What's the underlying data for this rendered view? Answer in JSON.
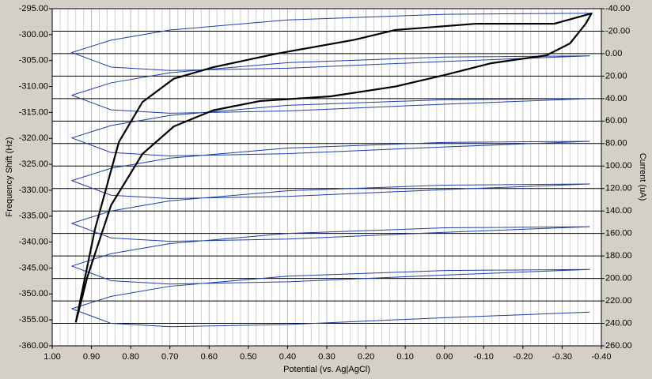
{
  "chart_data": {
    "type": "line",
    "xlabel": "Potential (vs. Ag|AgCl)",
    "ylabel": "Frequency Shift (Hz)",
    "y2label": "Current (uA)",
    "xlim": [
      1,
      -0.4
    ],
    "ylim": [
      -360,
      -295
    ],
    "y2lim": [
      260,
      -40
    ],
    "grid_x_subdivisions": 5,
    "xticks": [
      {
        "value": 1,
        "label": "1.00"
      },
      {
        "value": 0.9,
        "label": "0.90"
      },
      {
        "value": 0.8,
        "label": "0.80"
      },
      {
        "value": 0.7,
        "label": "0.70"
      },
      {
        "value": 0.6,
        "label": "0.60"
      },
      {
        "value": 0.5,
        "label": "0.50"
      },
      {
        "value": 0.4,
        "label": "0.40"
      },
      {
        "value": 0.3,
        "label": "0.30"
      },
      {
        "value": 0.2,
        "label": "0.20"
      },
      {
        "value": 0.1,
        "label": "0.10"
      },
      {
        "value": 0,
        "label": "0.00"
      },
      {
        "value": -0.1,
        "label": "-0.10"
      },
      {
        "value": -0.2,
        "label": "-0.20"
      },
      {
        "value": -0.3,
        "label": "-0.30"
      },
      {
        "value": -0.4,
        "label": "-0.40"
      }
    ],
    "yticks": [
      {
        "value": -295,
        "label": "-295.00"
      },
      {
        "value": -300,
        "label": "-300.00"
      },
      {
        "value": -305,
        "label": "-305.00"
      },
      {
        "value": -310,
        "label": "-310.00"
      },
      {
        "value": -315,
        "label": "-315.00"
      },
      {
        "value": -320,
        "label": "-320.00"
      },
      {
        "value": -325,
        "label": "-325.00"
      },
      {
        "value": -330,
        "label": "-330.00"
      },
      {
        "value": -335,
        "label": "-335.00"
      },
      {
        "value": -340,
        "label": "-340.00"
      },
      {
        "value": -345,
        "label": "-345.00"
      },
      {
        "value": -350,
        "label": "-350.00"
      },
      {
        "value": -355,
        "label": "-355.00"
      },
      {
        "value": -360,
        "label": "-360.00"
      }
    ],
    "y2ticks": [
      {
        "value": -40,
        "label": "-40.00"
      },
      {
        "value": -20,
        "label": "-20.00"
      },
      {
        "value": 0,
        "label": "0.00"
      },
      {
        "value": 20,
        "label": "20.00"
      },
      {
        "value": 40,
        "label": "40.00"
      },
      {
        "value": 60,
        "label": "60.00"
      },
      {
        "value": 80,
        "label": "80.00"
      },
      {
        "value": 100,
        "label": "100.00"
      },
      {
        "value": 120,
        "label": "120.00"
      },
      {
        "value": 140,
        "label": "140.00"
      },
      {
        "value": 160,
        "label": "160.00"
      },
      {
        "value": 180,
        "label": "180.00"
      },
      {
        "value": 200,
        "label": "200.00"
      },
      {
        "value": 220,
        "label": "220.00"
      },
      {
        "value": 240,
        "label": "240.00"
      },
      {
        "value": 260,
        "label": "260.00"
      }
    ],
    "series": [
      {
        "color": "#1f3fa8",
        "axis": "y2",
        "width": 1,
        "x": [
          -0.37,
          0,
          0.4,
          0.7,
          0.85,
          0.95,
          0.85,
          0.7,
          0.4,
          0,
          -0.37,
          0,
          0.4,
          0.7,
          0.85,
          0.95,
          0.85,
          0.7,
          0.4,
          0,
          -0.37,
          0,
          0.4,
          0.7,
          0.85,
          0.95,
          0.85,
          0.7,
          0.4,
          0,
          -0.37,
          0,
          0.4,
          0.7,
          0.85,
          0.95,
          0.85,
          0.7,
          0.4,
          0,
          -0.37,
          0,
          0.4,
          0.7,
          0.85,
          0.95,
          0.85,
          0.7,
          0.4,
          0,
          -0.37,
          0,
          0.4,
          0.7,
          0.85,
          0.95,
          0.85,
          0.7,
          0.4,
          0,
          -0.37,
          0,
          0.4,
          0.7,
          0.85,
          0.95,
          0.85,
          0.7,
          0.4,
          0,
          -0.37
        ],
        "values": [
          -36,
          -35,
          -30,
          -21,
          -12,
          -1,
          12,
          15,
          13,
          7,
          2,
          3,
          8,
          17,
          26,
          37,
          50,
          53,
          51,
          45,
          40,
          41,
          46,
          55,
          64,
          75,
          88,
          91,
          89,
          83,
          78,
          79,
          84,
          93,
          102,
          113,
          126,
          129,
          127,
          121,
          116,
          117,
          122,
          131,
          140,
          151,
          164,
          167,
          165,
          159,
          154,
          155,
          160,
          169,
          178,
          189,
          202,
          205,
          203,
          197,
          192,
          193,
          198,
          207,
          216,
          227,
          240,
          243,
          241,
          235,
          230
        ]
      },
      {
        "color": "#000000",
        "axis": "y",
        "width": 2.2,
        "x": [
          0.94,
          0.891,
          0.83,
          0.77,
          0.69,
          0.59,
          0.43,
          0.23,
          0.125,
          -0.08,
          -0.2,
          -0.28,
          -0.375,
          -0.36,
          -0.32,
          -0.26,
          -0.12,
          0,
          0.125,
          0.29,
          0.47,
          0.59,
          0.69,
          0.77,
          0.85,
          0.91,
          0.94
        ],
        "values": [
          -355.5,
          -337.5,
          -320.7,
          -313,
          -308.5,
          -306.3,
          -303.7,
          -301,
          -299.1,
          -297.9,
          -297.9,
          -297.9,
          -295.9,
          -297.9,
          -301.7,
          -304,
          -305.5,
          -307.8,
          -310,
          -311.9,
          -312.8,
          -314.6,
          -317.7,
          -323,
          -332.9,
          -346.6,
          -355.5
        ]
      }
    ]
  }
}
